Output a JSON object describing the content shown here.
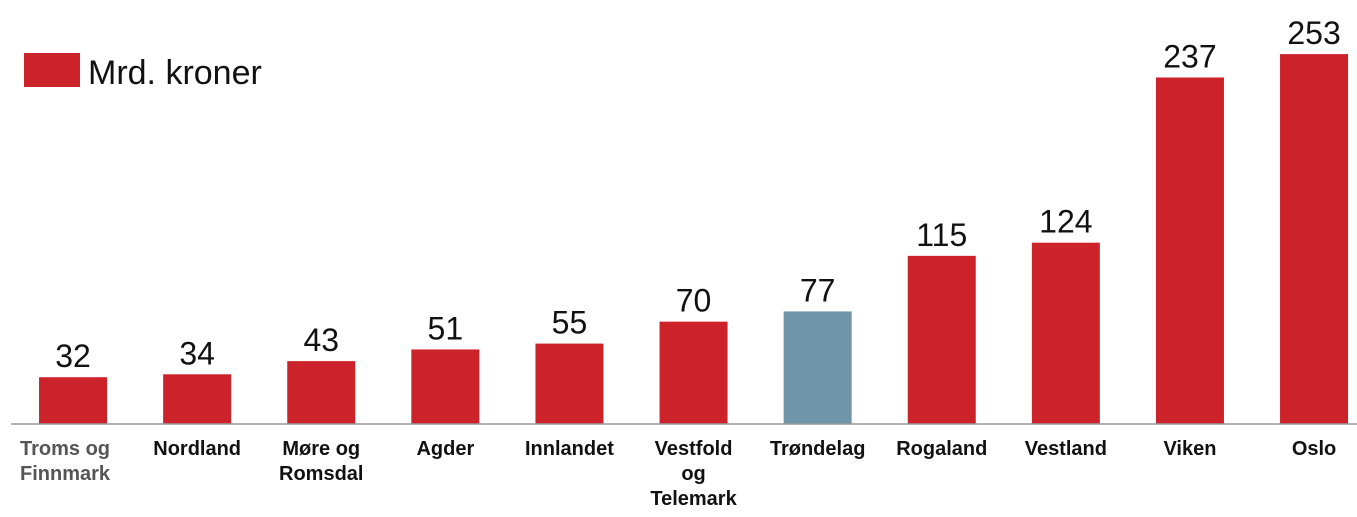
{
  "chart_data": {
    "type": "bar",
    "categories": [
      "Troms og Finnmark",
      "Nordland",
      "Møre og Romsdal",
      "Agder",
      "Innlandet",
      "Vestfold og Telemark",
      "Trøndelag",
      "Rogaland",
      "Vestland",
      "Viken",
      "Oslo"
    ],
    "series": [
      {
        "name": "Mrd. kroner",
        "color": "#cc2229",
        "colors": [
          "#cc2229",
          "#cc2229",
          "#cc2229",
          "#cc2229",
          "#cc2229",
          "#cc2229",
          "#7094a8",
          "#cc2229",
          "#cc2229",
          "#cc2229",
          "#cc2229"
        ],
        "values": [
          32,
          34,
          43,
          51,
          55,
          70,
          77,
          115,
          124,
          237,
          253
        ]
      }
    ],
    "ylim": [
      0,
      290
    ],
    "legend": "top-left"
  }
}
